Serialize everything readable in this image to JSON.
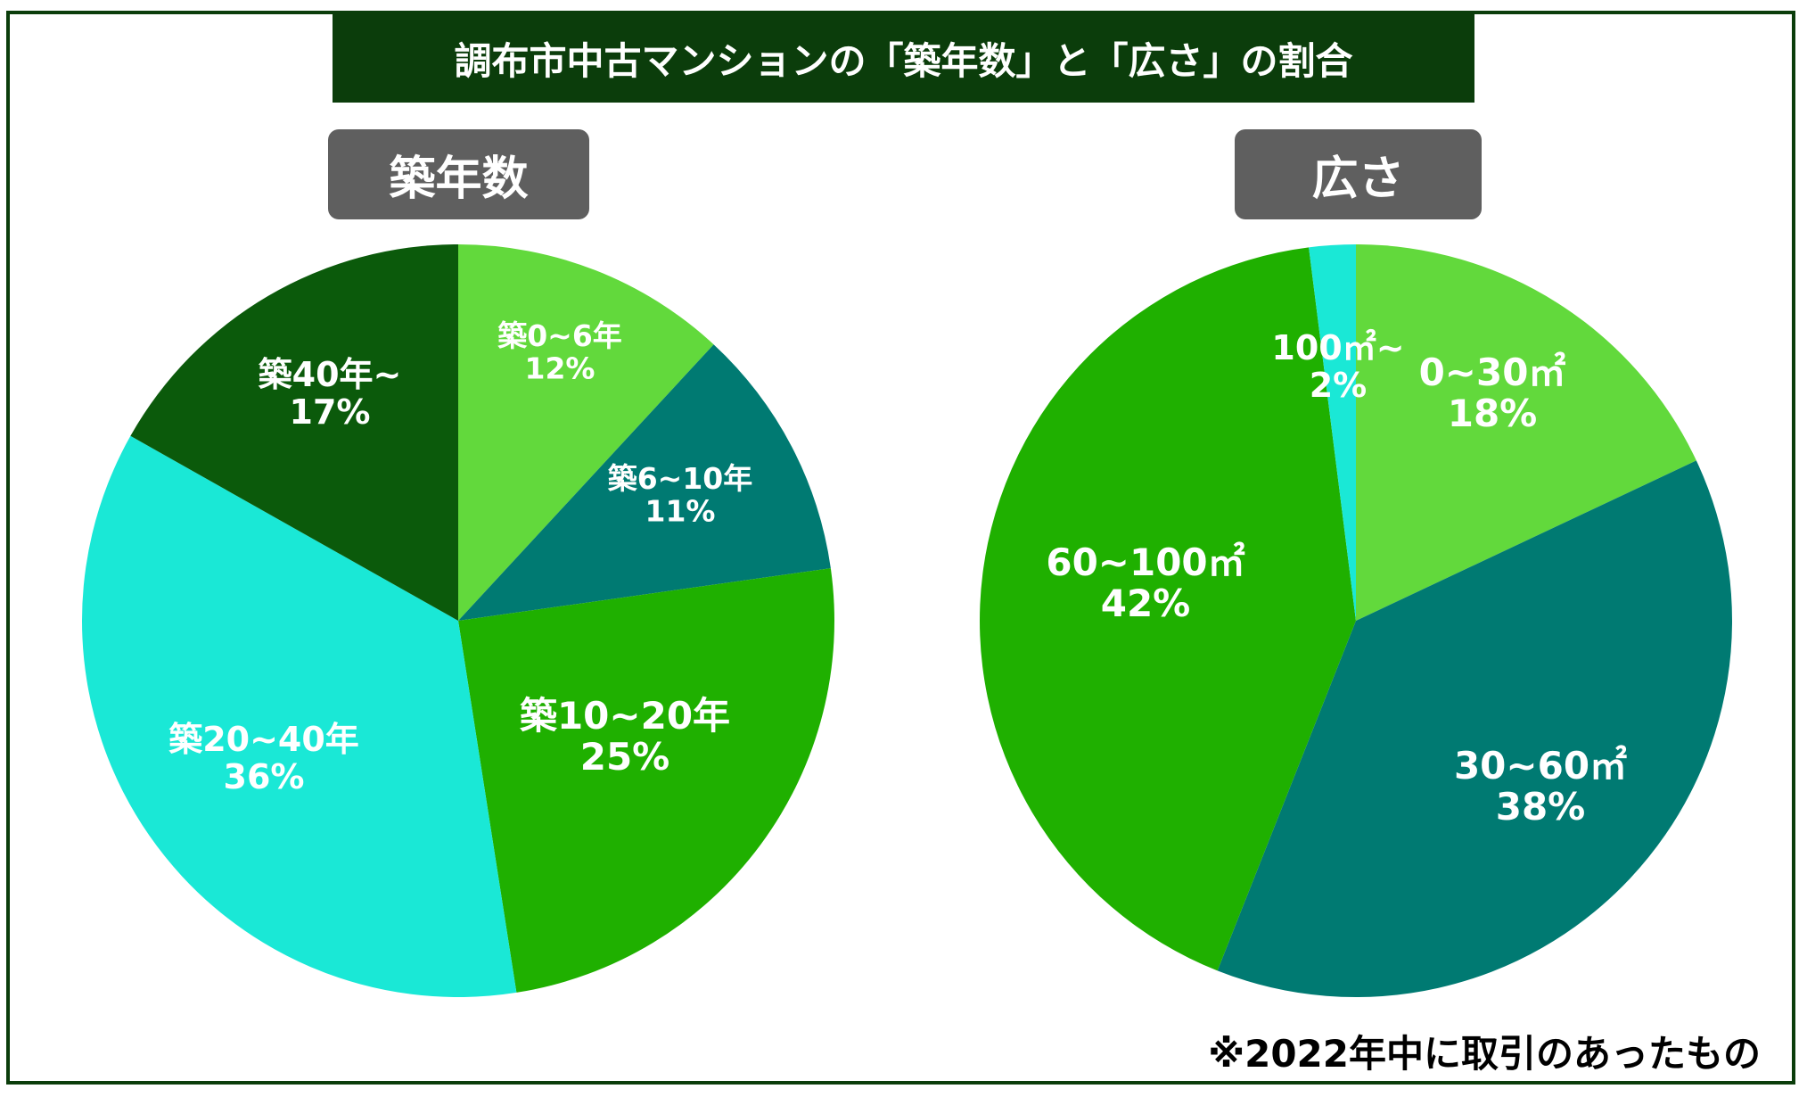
{
  "title": "調布市中古マンションの「築年数」と「広さ」の割合",
  "note": "※2022年中に取引のあったもの",
  "chart_data": [
    {
      "type": "pie",
      "title": "築年数",
      "slices": [
        {
          "label": "築0~6年",
          "value": 12,
          "value_label": "12%",
          "color": "#62d93c"
        },
        {
          "label": "築6~10年",
          "value": 11,
          "value_label": "11%",
          "color": "#007a72"
        },
        {
          "label": "築10~20年",
          "value": 25,
          "value_label": "25%",
          "color": "#1fb000"
        },
        {
          "label": "築20~40年",
          "value": 36,
          "value_label": "36%",
          "color": "#1ae8d6"
        },
        {
          "label": "築40年~",
          "value": 17,
          "value_label": "17%",
          "color": "#0b5a0b"
        }
      ]
    },
    {
      "type": "pie",
      "title": "広さ",
      "slices": [
        {
          "label": "0~30㎡",
          "value": 18,
          "value_label": "18%",
          "color": "#62d93c"
        },
        {
          "label": "30~60㎡",
          "value": 38,
          "value_label": "38%",
          "color": "#007a72"
        },
        {
          "label": "60~100㎡",
          "value": 42,
          "value_label": "42%",
          "color": "#1fb000"
        },
        {
          "label": "100㎡~",
          "value": 2,
          "value_label": "2%",
          "color": "#1ae8d6"
        }
      ]
    }
  ]
}
